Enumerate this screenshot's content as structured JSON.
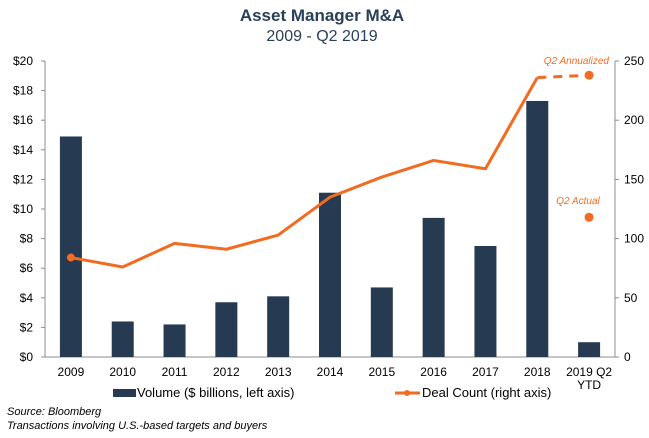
{
  "chart_data": {
    "type": "bar",
    "title": "Asset Manager M&A",
    "subtitle": "2009 - Q2 2019",
    "categories": [
      "2009",
      "2010",
      "2011",
      "2012",
      "2013",
      "2014",
      "2015",
      "2016",
      "2017",
      "2018",
      "2019 Q2\nYTD"
    ],
    "category_labels": [
      [
        "2009"
      ],
      [
        "2010"
      ],
      [
        "2011"
      ],
      [
        "2012"
      ],
      [
        "2013"
      ],
      [
        "2014"
      ],
      [
        "2015"
      ],
      [
        "2016"
      ],
      [
        "2017"
      ],
      [
        "2018"
      ],
      [
        "2019 Q2",
        "YTD"
      ]
    ],
    "series": [
      {
        "name": "Volume ($ billions, left axis)",
        "type": "bar",
        "axis": "left",
        "color": "#263a52",
        "values": [
          14.9,
          2.4,
          2.2,
          3.7,
          4.1,
          11.1,
          4.7,
          9.4,
          7.5,
          17.3,
          1.0
        ]
      },
      {
        "name": "Deal Count (right axis)",
        "type": "line",
        "axis": "right",
        "color": "#f26b21",
        "values": [
          84,
          76,
          96,
          91,
          103,
          135,
          152,
          166,
          159,
          236,
          null
        ]
      }
    ],
    "extra_points": [
      {
        "label": "Q2 Annualized",
        "category_index": 10,
        "value": 238,
        "axis": "right",
        "connected_dashed_from": 9
      },
      {
        "label": "Q2 Actual",
        "category_index": 10,
        "value": 118,
        "axis": "right"
      }
    ],
    "left_axis": {
      "ylim": [
        0,
        20
      ],
      "ticks": [
        0,
        2,
        4,
        6,
        8,
        10,
        12,
        14,
        16,
        18,
        20
      ],
      "tick_labels": [
        "$0",
        "$2",
        "$4",
        "$6",
        "$8",
        "$10",
        "$12",
        "$14",
        "$16",
        "$18",
        "$20"
      ]
    },
    "right_axis": {
      "ylim": [
        0,
        250
      ],
      "ticks": [
        0,
        50,
        100,
        150,
        200,
        250
      ],
      "tick_labels": [
        "0",
        "50",
        "100",
        "150",
        "200",
        "250"
      ]
    },
    "grid": false,
    "legend": {
      "position": "bottom",
      "entries": [
        "Volume ($ billions, left axis)",
        "Deal Count (right axis)"
      ]
    }
  },
  "footnotes": {
    "source": "Source: Bloomberg",
    "note": "Transactions involving U.S.-based targets and buyers"
  }
}
